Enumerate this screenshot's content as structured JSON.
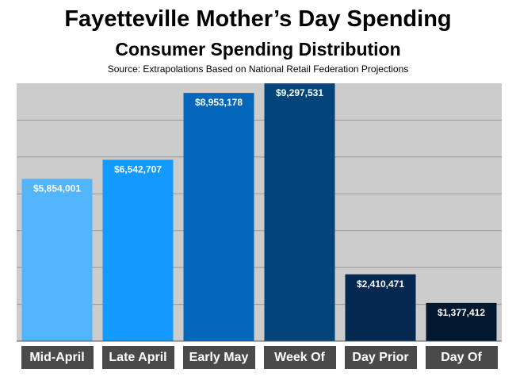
{
  "chart_data": {
    "type": "bar",
    "title": "Fayetteville Mother’s Day Spending",
    "subtitle": "Consumer Spending Distribution",
    "source": "Source: Extrapolations Based on National Retail Federation Projections",
    "categories": [
      "Mid-April",
      "Late April",
      "Early May",
      "Week Of",
      "Day Prior",
      "Day Of"
    ],
    "values": [
      5854001,
      6542707,
      8953178,
      9297531,
      2410471,
      1377412
    ],
    "data_labels": [
      "$5,854,001",
      "$6,542,707",
      "$8,953,178",
      "$9,297,531",
      "$2,410,471",
      "$1,377,412"
    ],
    "bar_colors": [
      "#52b4fb",
      "#139aff",
      "#0467b9",
      "#03457a",
      "#042850",
      "#021830"
    ],
    "ylim": [
      0,
      9300000
    ],
    "grid": true,
    "plot_background": "#cccccc",
    "gridline_color": "#999999",
    "category_label_background": "#4a4a4a",
    "xlabel": "",
    "ylabel": ""
  }
}
